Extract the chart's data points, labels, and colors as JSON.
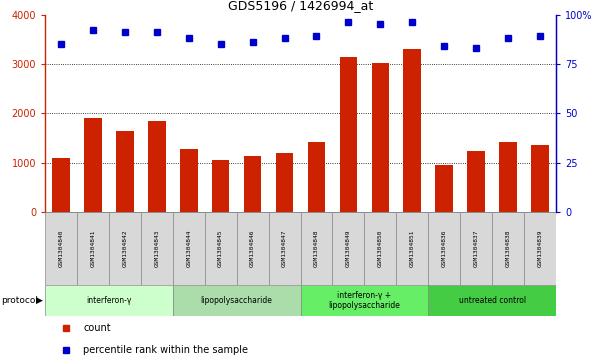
{
  "title": "GDS5196 / 1426994_at",
  "samples": [
    "GSM1304840",
    "GSM1304841",
    "GSM1304842",
    "GSM1304843",
    "GSM1304844",
    "GSM1304845",
    "GSM1304846",
    "GSM1304847",
    "GSM1304848",
    "GSM1304849",
    "GSM1304850",
    "GSM1304851",
    "GSM1304836",
    "GSM1304837",
    "GSM1304838",
    "GSM1304839"
  ],
  "counts": [
    1100,
    1900,
    1650,
    1850,
    1280,
    1050,
    1130,
    1190,
    1430,
    3150,
    3020,
    3310,
    960,
    1250,
    1430,
    1370
  ],
  "percentiles": [
    85,
    92,
    91,
    91,
    88,
    85,
    86,
    88,
    89,
    96,
    95,
    96,
    84,
    83,
    88,
    89
  ],
  "groups": [
    {
      "label": "interferon-γ",
      "start": 0,
      "end": 4,
      "color": "#ccffcc"
    },
    {
      "label": "lipopolysaccharide",
      "start": 4,
      "end": 8,
      "color": "#aaddaa"
    },
    {
      "label": "interferon-γ +\nlipopolysaccharide",
      "start": 8,
      "end": 12,
      "color": "#66ee66"
    },
    {
      "label": "untreated control",
      "start": 12,
      "end": 16,
      "color": "#44cc44"
    }
  ],
  "bar_color": "#cc2200",
  "dot_color": "#0000cc",
  "ylim_left": [
    0,
    4000
  ],
  "ylim_right": [
    0,
    100
  ],
  "yticks_left": [
    0,
    1000,
    2000,
    3000,
    4000
  ],
  "yticks_right": [
    0,
    25,
    50,
    75,
    100
  ],
  "ytick_labels_right": [
    "0",
    "25",
    "50",
    "75",
    "100%"
  ],
  "grid_values": [
    1000,
    2000,
    3000
  ],
  "bg_color": "#ffffff",
  "plot_bg": "#ffffff",
  "label_box_color": "#d8d8d8",
  "bar_width": 0.55
}
